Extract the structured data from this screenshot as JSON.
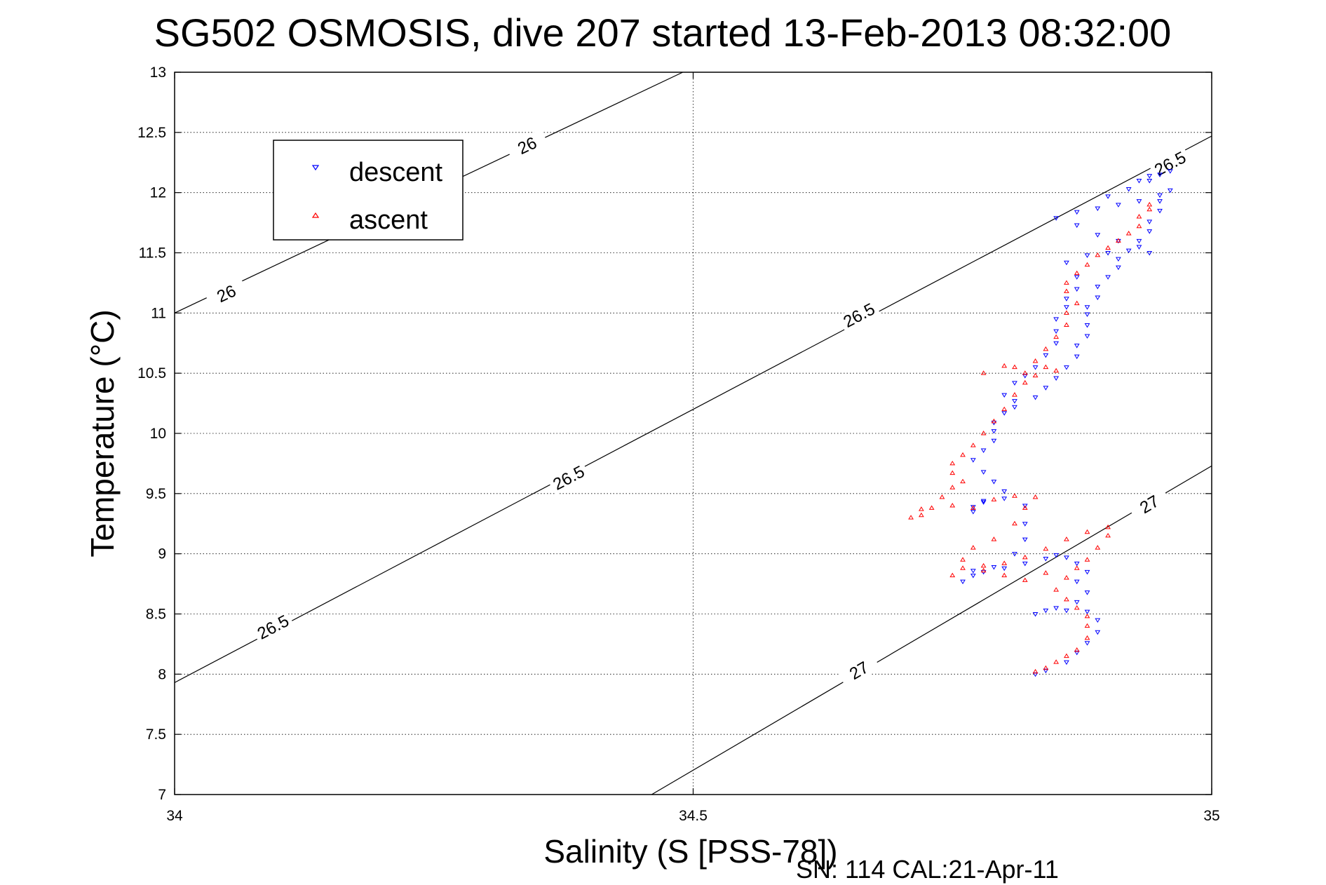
{
  "chart_data": {
    "type": "scatter",
    "title": "SG502 OSMOSIS, dive 207 started 13-Feb-2013 08:32:00",
    "xlabel": "Salinity (S [PSS-78])",
    "ylabel": "Temperature (°C)",
    "xlim": [
      34,
      35
    ],
    "ylim": [
      7,
      13
    ],
    "xticks": [
      34,
      34.5,
      35
    ],
    "yticks": [
      7,
      7.5,
      8,
      8.5,
      9,
      9.5,
      10,
      10.5,
      11,
      11.5,
      12,
      12.5,
      13
    ],
    "grid": true,
    "legend_position": "top-left",
    "footer": "SN: 114  CAL:21-Apr-11",
    "legend": [
      {
        "name": "descent",
        "color": "#0000ff",
        "marker": "triangle-down"
      },
      {
        "name": "ascent",
        "color": "#ff0000",
        "marker": "triangle-up"
      }
    ],
    "isopycnals": [
      {
        "label": "26",
        "points": [
          [
            34.0,
            11.0
          ],
          [
            34.49,
            13.0
          ]
        ],
        "label_at": [
          [
            34.05,
            11.16
          ],
          [
            34.34,
            12.39
          ]
        ]
      },
      {
        "label": "26.5",
        "points": [
          [
            34.0,
            7.93
          ],
          [
            35.0,
            12.47
          ]
        ],
        "label_at": [
          [
            34.095,
            8.39
          ],
          [
            34.38,
            9.63
          ],
          [
            34.66,
            10.98
          ],
          [
            34.96,
            12.24
          ]
        ]
      },
      {
        "label": "27",
        "points": [
          [
            34.46,
            7.0
          ],
          [
            35.0,
            9.73
          ]
        ],
        "label_at": [
          [
            34.66,
            8.03
          ],
          [
            34.94,
            9.41
          ]
        ]
      }
    ],
    "series": [
      {
        "name": "descent",
        "color": "#0000ff",
        "points": [
          [
            34.83,
            8.0
          ],
          [
            34.84,
            8.03
          ],
          [
            34.86,
            8.1
          ],
          [
            34.87,
            8.18
          ],
          [
            34.88,
            8.26
          ],
          [
            34.89,
            8.35
          ],
          [
            34.89,
            8.45
          ],
          [
            34.88,
            8.52
          ],
          [
            34.86,
            8.53
          ],
          [
            34.84,
            8.53
          ],
          [
            34.83,
            8.5
          ],
          [
            34.85,
            8.55
          ],
          [
            34.87,
            8.6
          ],
          [
            34.88,
            8.68
          ],
          [
            34.87,
            8.77
          ],
          [
            34.88,
            8.85
          ],
          [
            34.87,
            8.92
          ],
          [
            34.86,
            8.97
          ],
          [
            34.85,
            8.99
          ],
          [
            34.84,
            8.96
          ],
          [
            34.82,
            8.92
          ],
          [
            34.8,
            8.88
          ],
          [
            34.78,
            8.85
          ],
          [
            34.77,
            8.82
          ],
          [
            34.76,
            8.77
          ],
          [
            34.77,
            8.86
          ],
          [
            34.79,
            8.89
          ],
          [
            34.81,
            9.0
          ],
          [
            34.82,
            9.12
          ],
          [
            34.82,
            9.25
          ],
          [
            34.82,
            9.4
          ],
          [
            34.8,
            9.46
          ],
          [
            34.78,
            9.44
          ],
          [
            34.77,
            9.39
          ],
          [
            34.77,
            9.35
          ],
          [
            34.78,
            9.43
          ],
          [
            34.8,
            9.52
          ],
          [
            34.79,
            9.6
          ],
          [
            34.78,
            9.68
          ],
          [
            34.77,
            9.78
          ],
          [
            34.78,
            9.86
          ],
          [
            34.79,
            9.94
          ],
          [
            34.79,
            10.02
          ],
          [
            34.79,
            10.09
          ],
          [
            34.8,
            10.17
          ],
          [
            34.81,
            10.22
          ],
          [
            34.83,
            10.3
          ],
          [
            34.84,
            10.38
          ],
          [
            34.85,
            10.46
          ],
          [
            34.86,
            10.55
          ],
          [
            34.87,
            10.64
          ],
          [
            34.87,
            10.73
          ],
          [
            34.88,
            10.81
          ],
          [
            34.88,
            10.9
          ],
          [
            34.88,
            10.99
          ],
          [
            34.88,
            11.05
          ],
          [
            34.89,
            11.13
          ],
          [
            34.89,
            11.22
          ],
          [
            34.9,
            11.3
          ],
          [
            34.91,
            11.38
          ],
          [
            34.91,
            11.45
          ],
          [
            34.92,
            11.52
          ],
          [
            34.93,
            11.6
          ],
          [
            34.94,
            11.68
          ],
          [
            34.94,
            11.76
          ],
          [
            34.95,
            11.85
          ],
          [
            34.95,
            11.93
          ],
          [
            34.96,
            12.02
          ],
          [
            34.95,
            11.98
          ],
          [
            34.93,
            11.93
          ],
          [
            34.91,
            11.9
          ],
          [
            34.89,
            11.87
          ],
          [
            34.87,
            11.84
          ],
          [
            34.85,
            11.79
          ],
          [
            34.87,
            11.73
          ],
          [
            34.89,
            11.65
          ],
          [
            34.91,
            11.6
          ],
          [
            34.93,
            11.55
          ],
          [
            34.94,
            11.5
          ],
          [
            34.9,
            11.5
          ],
          [
            34.88,
            11.48
          ],
          [
            34.86,
            11.42
          ],
          [
            34.87,
            11.3
          ],
          [
            34.87,
            11.2
          ],
          [
            34.86,
            11.12
          ],
          [
            34.86,
            11.05
          ],
          [
            34.85,
            10.95
          ],
          [
            34.85,
            10.85
          ],
          [
            34.85,
            10.75
          ],
          [
            34.84,
            10.65
          ],
          [
            34.83,
            10.55
          ],
          [
            34.82,
            10.48
          ],
          [
            34.81,
            10.42
          ],
          [
            34.8,
            10.32
          ],
          [
            34.81,
            10.27
          ],
          [
            34.9,
            11.97
          ],
          [
            34.92,
            12.03
          ],
          [
            34.94,
            12.1
          ],
          [
            34.95,
            12.15
          ],
          [
            34.96,
            12.18
          ],
          [
            34.94,
            12.14
          ],
          [
            34.93,
            12.1
          ]
        ]
      },
      {
        "name": "ascent",
        "color": "#ff0000",
        "points": [
          [
            34.83,
            8.02
          ],
          [
            34.84,
            8.05
          ],
          [
            34.85,
            8.1
          ],
          [
            34.86,
            8.15
          ],
          [
            34.87,
            8.2
          ],
          [
            34.88,
            8.3
          ],
          [
            34.88,
            8.4
          ],
          [
            34.88,
            8.48
          ],
          [
            34.87,
            8.55
          ],
          [
            34.86,
            8.62
          ],
          [
            34.85,
            8.7
          ],
          [
            34.86,
            8.8
          ],
          [
            34.87,
            8.88
          ],
          [
            34.88,
            8.95
          ],
          [
            34.89,
            9.05
          ],
          [
            34.9,
            9.15
          ],
          [
            34.9,
            9.22
          ],
          [
            34.88,
            9.18
          ],
          [
            34.86,
            9.12
          ],
          [
            34.84,
            9.04
          ],
          [
            34.82,
            8.97
          ],
          [
            34.8,
            8.92
          ],
          [
            34.78,
            8.9
          ],
          [
            34.76,
            8.88
          ],
          [
            34.75,
            8.82
          ],
          [
            34.76,
            8.95
          ],
          [
            34.77,
            9.05
          ],
          [
            34.79,
            9.12
          ],
          [
            34.81,
            9.25
          ],
          [
            34.82,
            9.38
          ],
          [
            34.83,
            9.47
          ],
          [
            34.81,
            9.48
          ],
          [
            34.79,
            9.45
          ],
          [
            34.77,
            9.38
          ],
          [
            34.75,
            9.4
          ],
          [
            34.73,
            9.38
          ],
          [
            34.72,
            9.32
          ],
          [
            34.71,
            9.3
          ],
          [
            34.72,
            9.37
          ],
          [
            34.74,
            9.47
          ],
          [
            34.75,
            9.55
          ],
          [
            34.76,
            9.6
          ],
          [
            34.75,
            9.67
          ],
          [
            34.75,
            9.75
          ],
          [
            34.76,
            9.82
          ],
          [
            34.77,
            9.9
          ],
          [
            34.78,
            10.0
          ],
          [
            34.79,
            10.1
          ],
          [
            34.8,
            10.2
          ],
          [
            34.81,
            10.32
          ],
          [
            34.82,
            10.42
          ],
          [
            34.82,
            10.5
          ],
          [
            34.81,
            10.55
          ],
          [
            34.83,
            10.6
          ],
          [
            34.84,
            10.7
          ],
          [
            34.85,
            10.8
          ],
          [
            34.86,
            10.9
          ],
          [
            34.86,
            11.0
          ],
          [
            34.87,
            11.08
          ],
          [
            34.86,
            11.18
          ],
          [
            34.86,
            11.25
          ],
          [
            34.87,
            11.33
          ],
          [
            34.88,
            11.4
          ],
          [
            34.89,
            11.48
          ],
          [
            34.9,
            11.54
          ],
          [
            34.91,
            11.6
          ],
          [
            34.92,
            11.66
          ],
          [
            34.93,
            11.72
          ],
          [
            34.93,
            11.8
          ],
          [
            34.94,
            11.86
          ],
          [
            34.94,
            11.9
          ],
          [
            34.85,
            10.52
          ],
          [
            34.84,
            10.55
          ],
          [
            34.83,
            10.48
          ],
          [
            34.8,
            10.56
          ],
          [
            34.78,
            10.5
          ],
          [
            34.8,
            8.82
          ],
          [
            34.78,
            8.86
          ],
          [
            34.84,
            8.84
          ],
          [
            34.82,
            8.78
          ]
        ]
      }
    ]
  }
}
